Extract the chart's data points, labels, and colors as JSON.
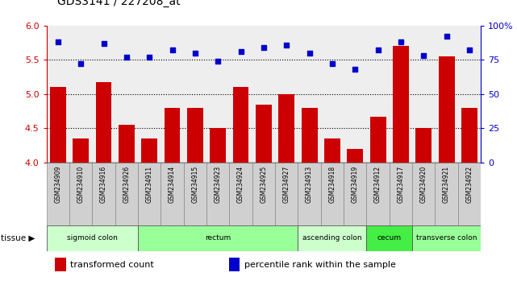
{
  "title": "GDS3141 / 227208_at",
  "samples": [
    "GSM234909",
    "GSM234910",
    "GSM234916",
    "GSM234926",
    "GSM234911",
    "GSM234914",
    "GSM234915",
    "GSM234923",
    "GSM234924",
    "GSM234925",
    "GSM234927",
    "GSM234913",
    "GSM234918",
    "GSM234919",
    "GSM234912",
    "GSM234917",
    "GSM234920",
    "GSM234921",
    "GSM234922"
  ],
  "bar_values": [
    5.1,
    4.35,
    5.17,
    4.55,
    4.35,
    4.8,
    4.8,
    4.5,
    5.1,
    4.85,
    5.0,
    4.8,
    4.35,
    4.2,
    4.67,
    5.7,
    4.5,
    5.55,
    4.8
  ],
  "dot_values": [
    88,
    72,
    87,
    77,
    77,
    82,
    80,
    74,
    81,
    84,
    86,
    80,
    72,
    68,
    82,
    88,
    78,
    92,
    82
  ],
  "ylim_left": [
    4.0,
    6.0
  ],
  "ylim_right": [
    0,
    100
  ],
  "yticks_left": [
    4.0,
    4.5,
    5.0,
    5.5,
    6.0
  ],
  "yticks_right": [
    0,
    25,
    50,
    75,
    100
  ],
  "hlines": [
    4.5,
    5.0,
    5.5
  ],
  "bar_color": "#CC0000",
  "dot_color": "#0000CC",
  "bar_bottom": 4.0,
  "tissue_groups": [
    {
      "label": "sigmoid colon",
      "start": 0,
      "end": 3,
      "color": "#ccffcc"
    },
    {
      "label": "rectum",
      "start": 4,
      "end": 10,
      "color": "#99ff99"
    },
    {
      "label": "ascending colon",
      "start": 11,
      "end": 13,
      "color": "#ccffcc"
    },
    {
      "label": "cecum",
      "start": 14,
      "end": 15,
      "color": "#44ee44"
    },
    {
      "label": "transverse colon",
      "start": 16,
      "end": 18,
      "color": "#99ff99"
    }
  ],
  "legend_items": [
    {
      "label": "transformed count",
      "color": "#CC0000"
    },
    {
      "label": "percentile rank within the sample",
      "color": "#0000CC"
    }
  ],
  "tick_color_left": "#CC0000",
  "tick_color_right": "#0000CC",
  "plot_bg_color": "#eeeeee",
  "label_box_color": "#d0d0d0",
  "bar_width": 0.7
}
